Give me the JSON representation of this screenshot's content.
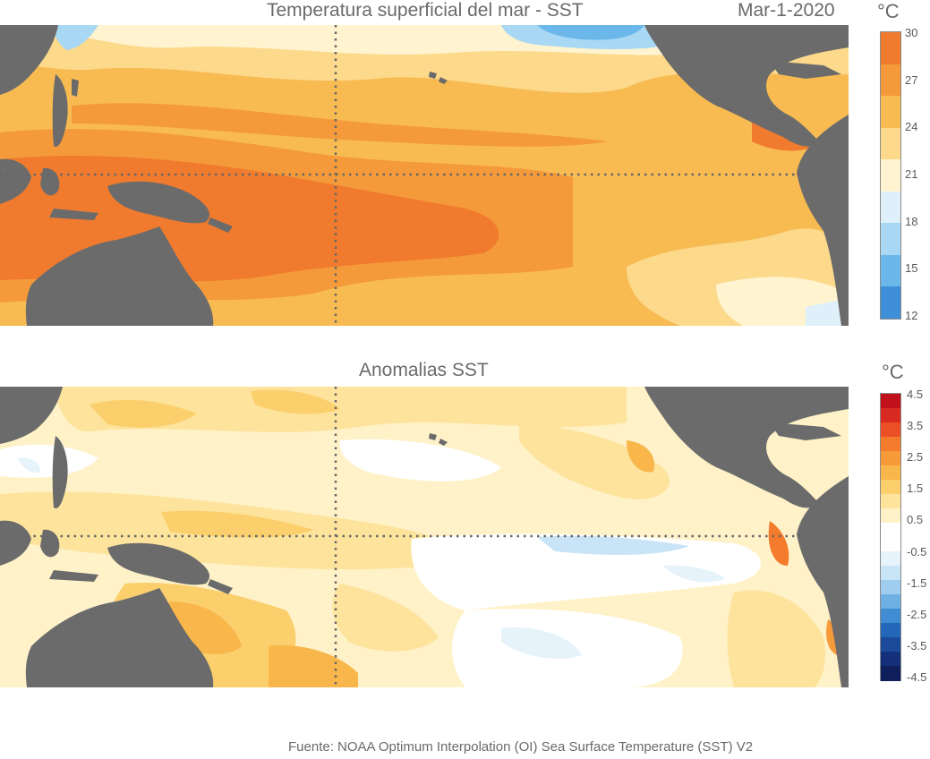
{
  "sst": {
    "title": "Temperatura superficial del mar - SST",
    "date": "Mar-1-2020",
    "unit": "°C",
    "colorbar_ticks": [
      "30",
      "27",
      "24",
      "21",
      "18",
      "15",
      "12"
    ],
    "colorbar_colors": [
      "#f07b2e",
      "#f49a3a",
      "#f8bb52",
      "#fcd98b",
      "#fff4cf",
      "#dff0fb",
      "#a8d8f4",
      "#6bb7ea",
      "#3e8fd8"
    ]
  },
  "anomaly": {
    "title": "Anomalias SST",
    "unit": "°C",
    "colorbar_ticks": [
      "4.5",
      "3.5",
      "2.5",
      "1.5",
      "0.5",
      "-0.5",
      "-1.5",
      "-2.5",
      "-3.5",
      "-4.5"
    ],
    "colorbar_colors": [
      "#c1121c",
      "#d92a22",
      "#eb4f25",
      "#f47a2c",
      "#f79a3a",
      "#f9b64a",
      "#fbcf6c",
      "#fde39b",
      "#fff2c8",
      "#ffffff",
      "#ffffff",
      "#e6f3fb",
      "#c8e4f6",
      "#9fcdef",
      "#6fb0e3",
      "#3f8cd2",
      "#2466b8",
      "#1a4a99",
      "#15307a",
      "#0f1f5c"
    ]
  },
  "source": "Fuente: NOAA Optimum Interpolation (OI) Sea Surface Temperature (SST) V2",
  "colors": {
    "land": "#6b6b6b",
    "grid": "#666666"
  }
}
